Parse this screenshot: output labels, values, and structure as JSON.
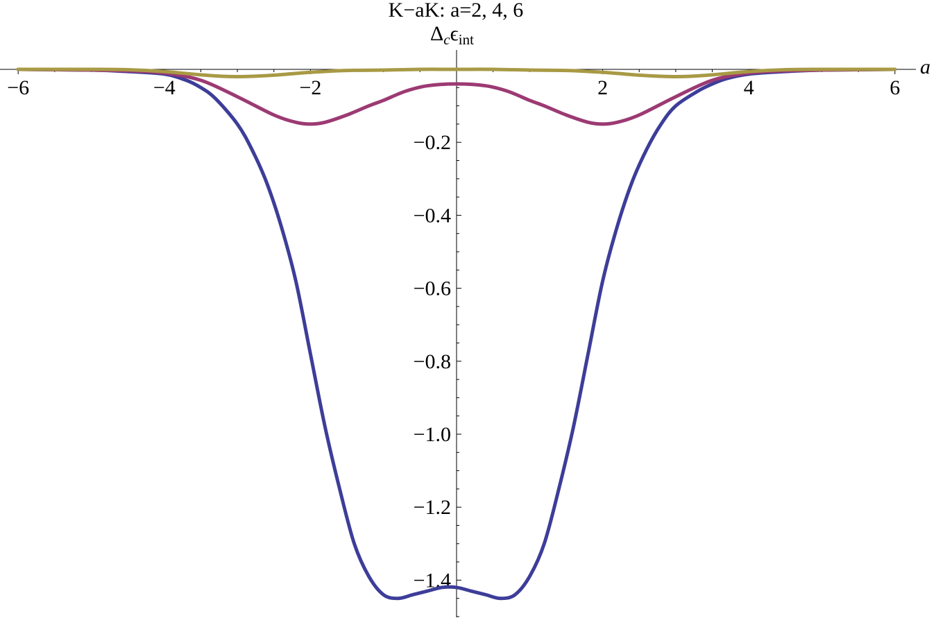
{
  "chart_data": {
    "type": "line",
    "title": "K−aK: a=2, 4, 6",
    "xlabel": "a",
    "ylabel": {
      "symbol": "Δ",
      "symbol_sub": "c",
      "main": "ϵ",
      "main_sub": "int"
    },
    "xlim": [
      -6,
      6
    ],
    "ylim": [
      -1.5,
      0.0
    ],
    "x_ticks": [
      -6,
      -4,
      -2,
      2,
      4,
      6
    ],
    "x_tick_labels": [
      "−6",
      "−4",
      "−2",
      "2",
      "4",
      "6"
    ],
    "y_ticks": [
      -0.2,
      -0.4,
      -0.6,
      -0.8,
      -1.0,
      -1.2,
      -1.4
    ],
    "y_tick_labels": [
      "−0.2",
      "−0.4",
      "−0.6",
      "−0.8",
      "−1.0",
      "−1.2",
      "−1.4"
    ],
    "series": [
      {
        "color": "#3d3d99",
        "x": [
          -6,
          -5,
          -4.5,
          -4,
          -3.7,
          -3.5,
          -3.3,
          -3,
          -2.8,
          -2.6,
          -2.4,
          -2.2,
          -2,
          -1.8,
          -1.6,
          -1.4,
          -1.2,
          -1,
          -0.8,
          -0.6,
          -0.4,
          -0.2,
          0,
          0.2,
          0.4,
          0.6,
          0.8,
          1,
          1.2,
          1.4,
          1.6,
          1.8,
          2,
          2.2,
          2.4,
          2.6,
          2.8,
          3,
          3.3,
          3.5,
          3.7,
          4,
          4.5,
          5,
          6
        ],
        "y": [
          0,
          -0.002,
          -0.006,
          -0.013,
          -0.03,
          -0.05,
          -0.08,
          -0.15,
          -0.22,
          -0.31,
          -0.43,
          -0.58,
          -0.78,
          -0.98,
          -1.15,
          -1.3,
          -1.39,
          -1.44,
          -1.45,
          -1.44,
          -1.43,
          -1.42,
          -1.42,
          -1.43,
          -1.44,
          -1.45,
          -1.44,
          -1.39,
          -1.3,
          -1.15,
          -0.98,
          -0.78,
          -0.58,
          -0.43,
          -0.31,
          -0.22,
          -0.15,
          -0.1,
          -0.06,
          -0.04,
          -0.025,
          -0.013,
          -0.006,
          -0.002,
          0
        ]
      },
      {
        "color": "#9c3a73",
        "x": [
          -6,
          -5,
          -4.5,
          -4,
          -3.5,
          -3,
          -2.5,
          -2.2,
          -2,
          -1.8,
          -1.5,
          -1.2,
          -1,
          -0.7,
          -0.4,
          0,
          0.4,
          0.7,
          1,
          1.2,
          1.5,
          1.8,
          2,
          2.2,
          2.5,
          3,
          3.5,
          4,
          4.5,
          5,
          6
        ],
        "y": [
          0,
          -0.002,
          -0.004,
          -0.01,
          -0.03,
          -0.075,
          -0.125,
          -0.145,
          -0.15,
          -0.145,
          -0.125,
          -0.1,
          -0.085,
          -0.06,
          -0.045,
          -0.04,
          -0.045,
          -0.06,
          -0.085,
          -0.1,
          -0.125,
          -0.145,
          -0.15,
          -0.145,
          -0.125,
          -0.075,
          -0.03,
          -0.01,
          -0.004,
          -0.002,
          0
        ]
      },
      {
        "color": "#a89a45",
        "x": [
          -6,
          -5,
          -4.5,
          -4,
          -3.5,
          -3.2,
          -3,
          -2.8,
          -2.5,
          -2,
          -1.5,
          -1,
          -0.5,
          0,
          0.5,
          1,
          1.5,
          2,
          2.5,
          2.8,
          3,
          3.2,
          3.5,
          4,
          4.5,
          5,
          6
        ],
        "y": [
          0,
          0,
          -0.001,
          -0.006,
          -0.015,
          -0.019,
          -0.02,
          -0.019,
          -0.016,
          -0.008,
          -0.003,
          -0.002,
          0,
          0,
          0,
          -0.002,
          -0.003,
          -0.008,
          -0.016,
          -0.019,
          -0.02,
          -0.019,
          -0.015,
          -0.006,
          -0.001,
          0,
          0
        ]
      }
    ]
  }
}
